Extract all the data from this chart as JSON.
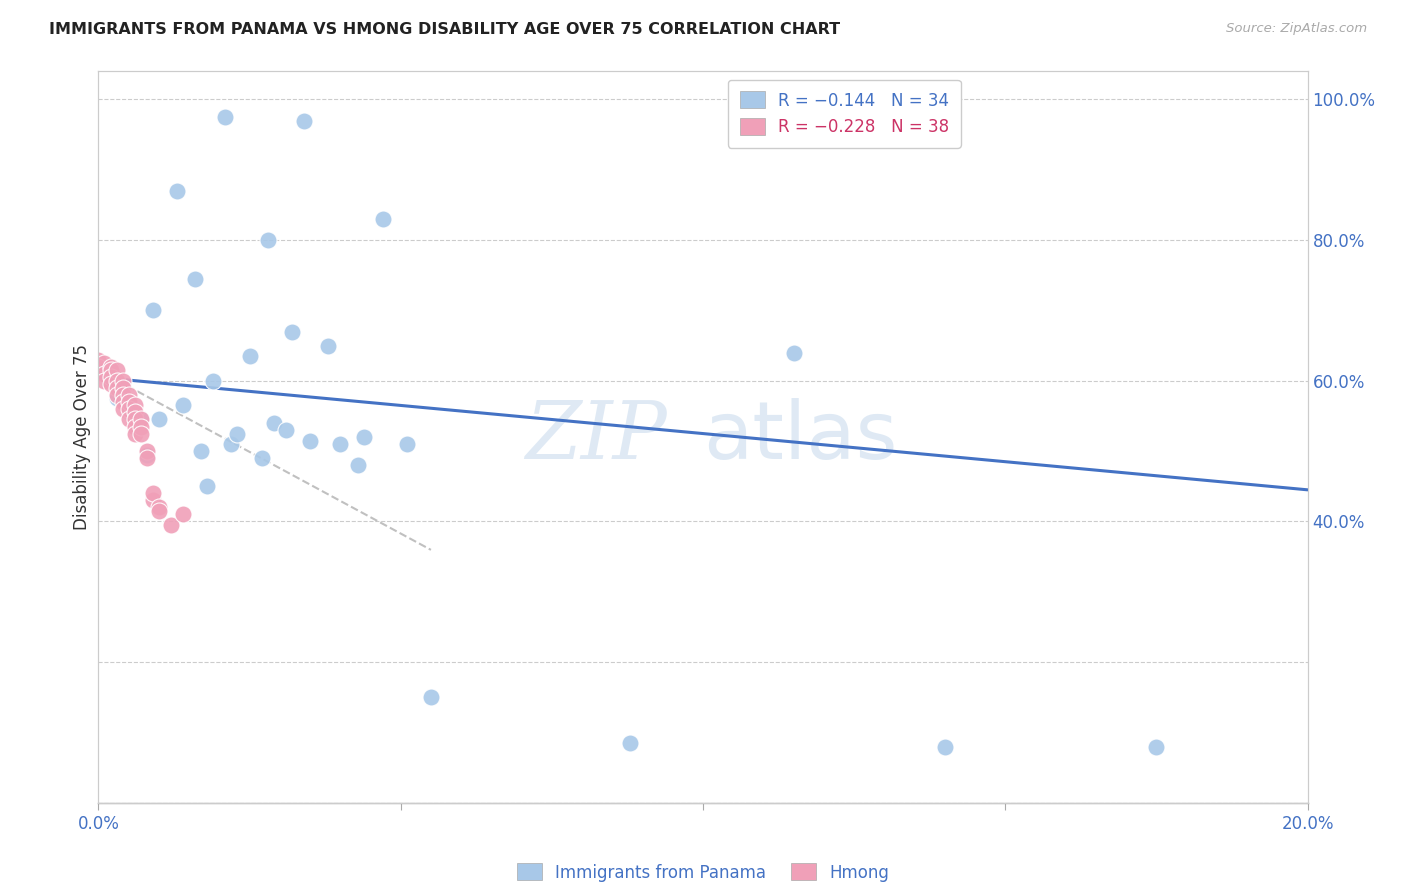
{
  "title": "IMMIGRANTS FROM PANAMA VS HMONG DISABILITY AGE OVER 75 CORRELATION CHART",
  "source": "Source: ZipAtlas.com",
  "ylabel": "Disability Age Over 75",
  "legend_blue_r": "R = −0.144",
  "legend_blue_n": "N = 34",
  "legend_pink_r": "R = −0.228",
  "legend_pink_n": "N = 38",
  "blue_color": "#a8c8e8",
  "pink_color": "#f0a0b8",
  "trendline_blue_color": "#4472c4",
  "trendline_pink_color": "#e08090",
  "trendline_gray_color": "#c0c0c0",
  "watermark_zip": "ZIP",
  "watermark_atlas": "atlas",
  "blue_points_x": [
    0.021,
    0.034,
    0.013,
    0.047,
    0.028,
    0.016,
    0.009,
    0.032,
    0.038,
    0.025,
    0.019,
    0.014,
    0.029,
    0.044,
    0.035,
    0.051,
    0.031,
    0.022,
    0.04,
    0.017,
    0.027,
    0.023,
    0.008,
    0.043,
    0.018,
    0.14,
    0.175,
    0.088,
    0.055,
    0.115,
    0.003,
    0.005,
    0.007,
    0.01
  ],
  "blue_points_y": [
    0.975,
    0.97,
    0.87,
    0.83,
    0.8,
    0.745,
    0.7,
    0.67,
    0.65,
    0.635,
    0.6,
    0.565,
    0.54,
    0.52,
    0.515,
    0.51,
    0.53,
    0.51,
    0.51,
    0.5,
    0.49,
    0.525,
    0.495,
    0.48,
    0.45,
    0.08,
    0.08,
    0.085,
    0.15,
    0.64,
    0.575,
    0.555,
    0.545,
    0.545
  ],
  "pink_points_x": [
    0.0,
    0.0,
    0.001,
    0.001,
    0.001,
    0.002,
    0.002,
    0.002,
    0.002,
    0.003,
    0.003,
    0.003,
    0.003,
    0.004,
    0.004,
    0.004,
    0.004,
    0.004,
    0.005,
    0.005,
    0.005,
    0.005,
    0.006,
    0.006,
    0.006,
    0.006,
    0.006,
    0.007,
    0.007,
    0.007,
    0.008,
    0.008,
    0.009,
    0.009,
    0.01,
    0.01,
    0.012,
    0.014
  ],
  "pink_points_y": [
    0.63,
    0.62,
    0.625,
    0.61,
    0.6,
    0.62,
    0.615,
    0.605,
    0.595,
    0.615,
    0.6,
    0.59,
    0.58,
    0.6,
    0.59,
    0.58,
    0.57,
    0.56,
    0.58,
    0.57,
    0.56,
    0.545,
    0.565,
    0.555,
    0.545,
    0.535,
    0.525,
    0.545,
    0.535,
    0.525,
    0.5,
    0.49,
    0.43,
    0.44,
    0.42,
    0.415,
    0.395,
    0.41
  ],
  "blue_trend_x0": 0.0,
  "blue_trend_y0": 0.605,
  "blue_trend_x1": 0.2,
  "blue_trend_y1": 0.445,
  "pink_trend_x0": 0.0,
  "pink_trend_y0": 0.615,
  "pink_trend_x1": 0.028,
  "pink_trend_y1": 0.485,
  "xlim": [
    0.0,
    0.2
  ],
  "ylim": [
    0.0,
    1.04
  ],
  "xticks": [
    0.0,
    0.05,
    0.1,
    0.15,
    0.2
  ],
  "xtick_labels": [
    "0.0%",
    "",
    "",
    "",
    "20.0%"
  ],
  "yticks_right": [
    0.4,
    0.6,
    0.8,
    1.0
  ],
  "ytick_labels_right": [
    "40.0%",
    "60.0%",
    "80.0%",
    "100.0%"
  ]
}
